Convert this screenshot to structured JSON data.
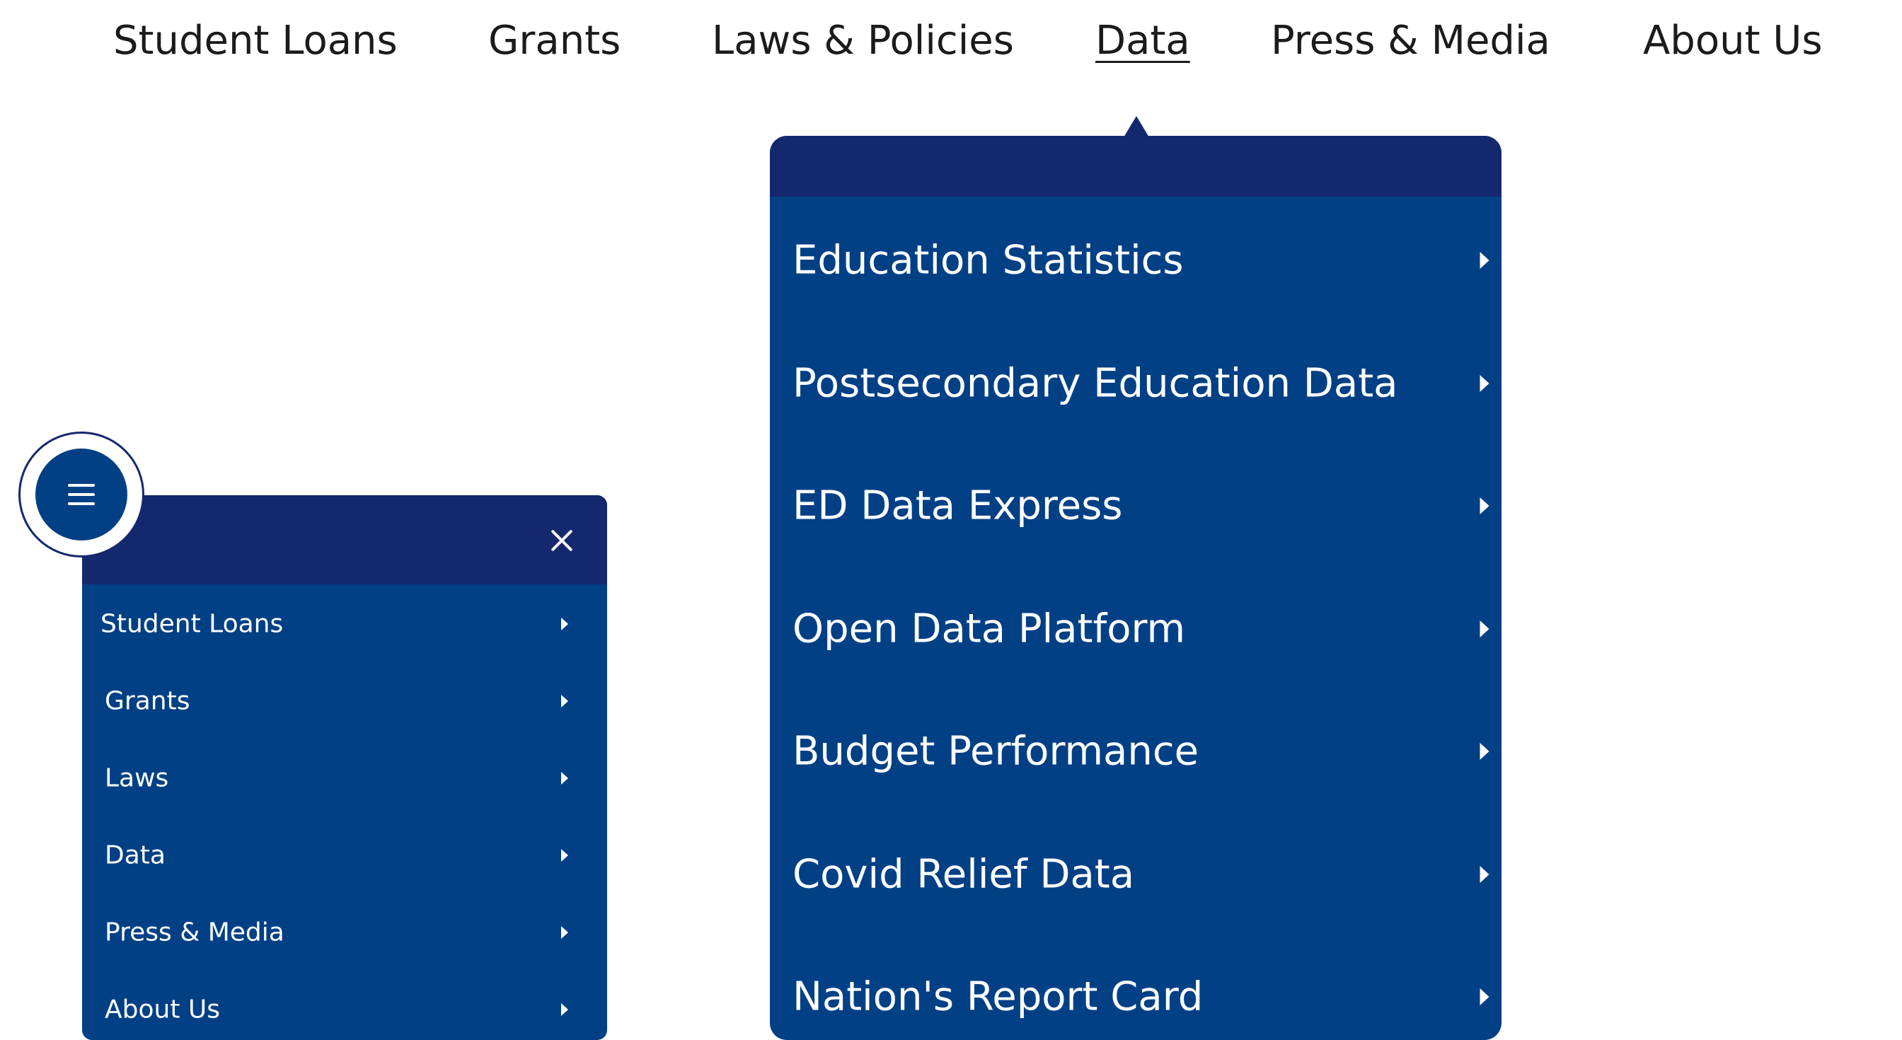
{
  "topnav": {
    "items": [
      {
        "label": "Student Loans"
      },
      {
        "label": "Grants"
      },
      {
        "label": "Laws & Policies"
      },
      {
        "label": "Data",
        "active": true
      },
      {
        "label": "Press & Media"
      },
      {
        "label": "About Us"
      }
    ]
  },
  "data_dropdown": {
    "items": [
      {
        "label": "Education Statistics"
      },
      {
        "label": "Postsecondary Education Data"
      },
      {
        "label": "ED Data Express"
      },
      {
        "label": "Open Data Platform"
      },
      {
        "label": "Budget Performance"
      },
      {
        "label": "Covid Relief Data"
      },
      {
        "label": "Nation's Report Card"
      }
    ]
  },
  "mobile_menu": {
    "close_icon": "close-icon",
    "items": [
      {
        "label": "Student Loans"
      },
      {
        "label": "Grants"
      },
      {
        "label": "Laws"
      },
      {
        "label": "Data"
      },
      {
        "label": "Press & Media"
      },
      {
        "label": "About Us"
      }
    ]
  },
  "hamburger": {
    "icon": "hamburger-icon"
  },
  "colors": {
    "primary_blue": "#024086",
    "dark_navy": "#14296d",
    "text_dark": "#1b1b1b",
    "text_light": "#ffffff"
  }
}
